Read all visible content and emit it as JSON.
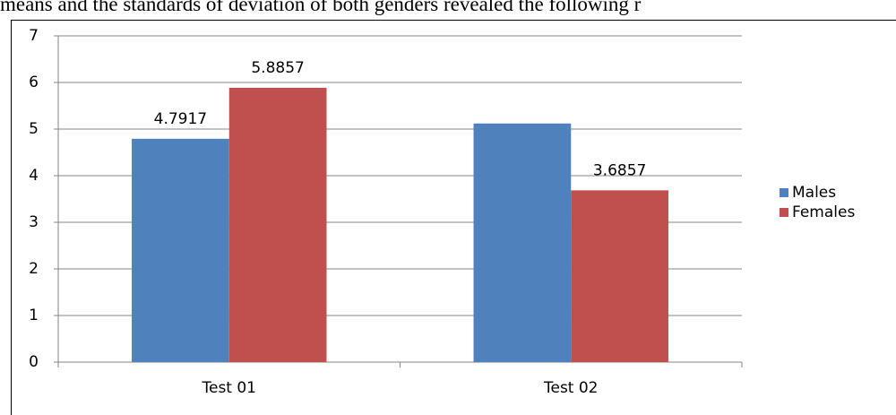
{
  "document": {
    "text": "means and the standards of deviation of both genders revealed the following r"
  },
  "chart_data": {
    "type": "bar",
    "categories": [
      "Test 01",
      "Test 02"
    ],
    "series": [
      {
        "name": "Males",
        "color": "#4f81bd",
        "values": [
          4.7917,
          5.12
        ],
        "value_labels": [
          "4.7917",
          null
        ]
      },
      {
        "name": "Females",
        "color": "#c0504d",
        "values": [
          5.8857,
          3.6857
        ],
        "value_labels": [
          "5.8857",
          "3.6857"
        ]
      }
    ],
    "ylim": [
      0,
      7
    ],
    "yticks": [
      0,
      1,
      2,
      3,
      4,
      5,
      6,
      7
    ],
    "grid": true,
    "legend": "right"
  }
}
